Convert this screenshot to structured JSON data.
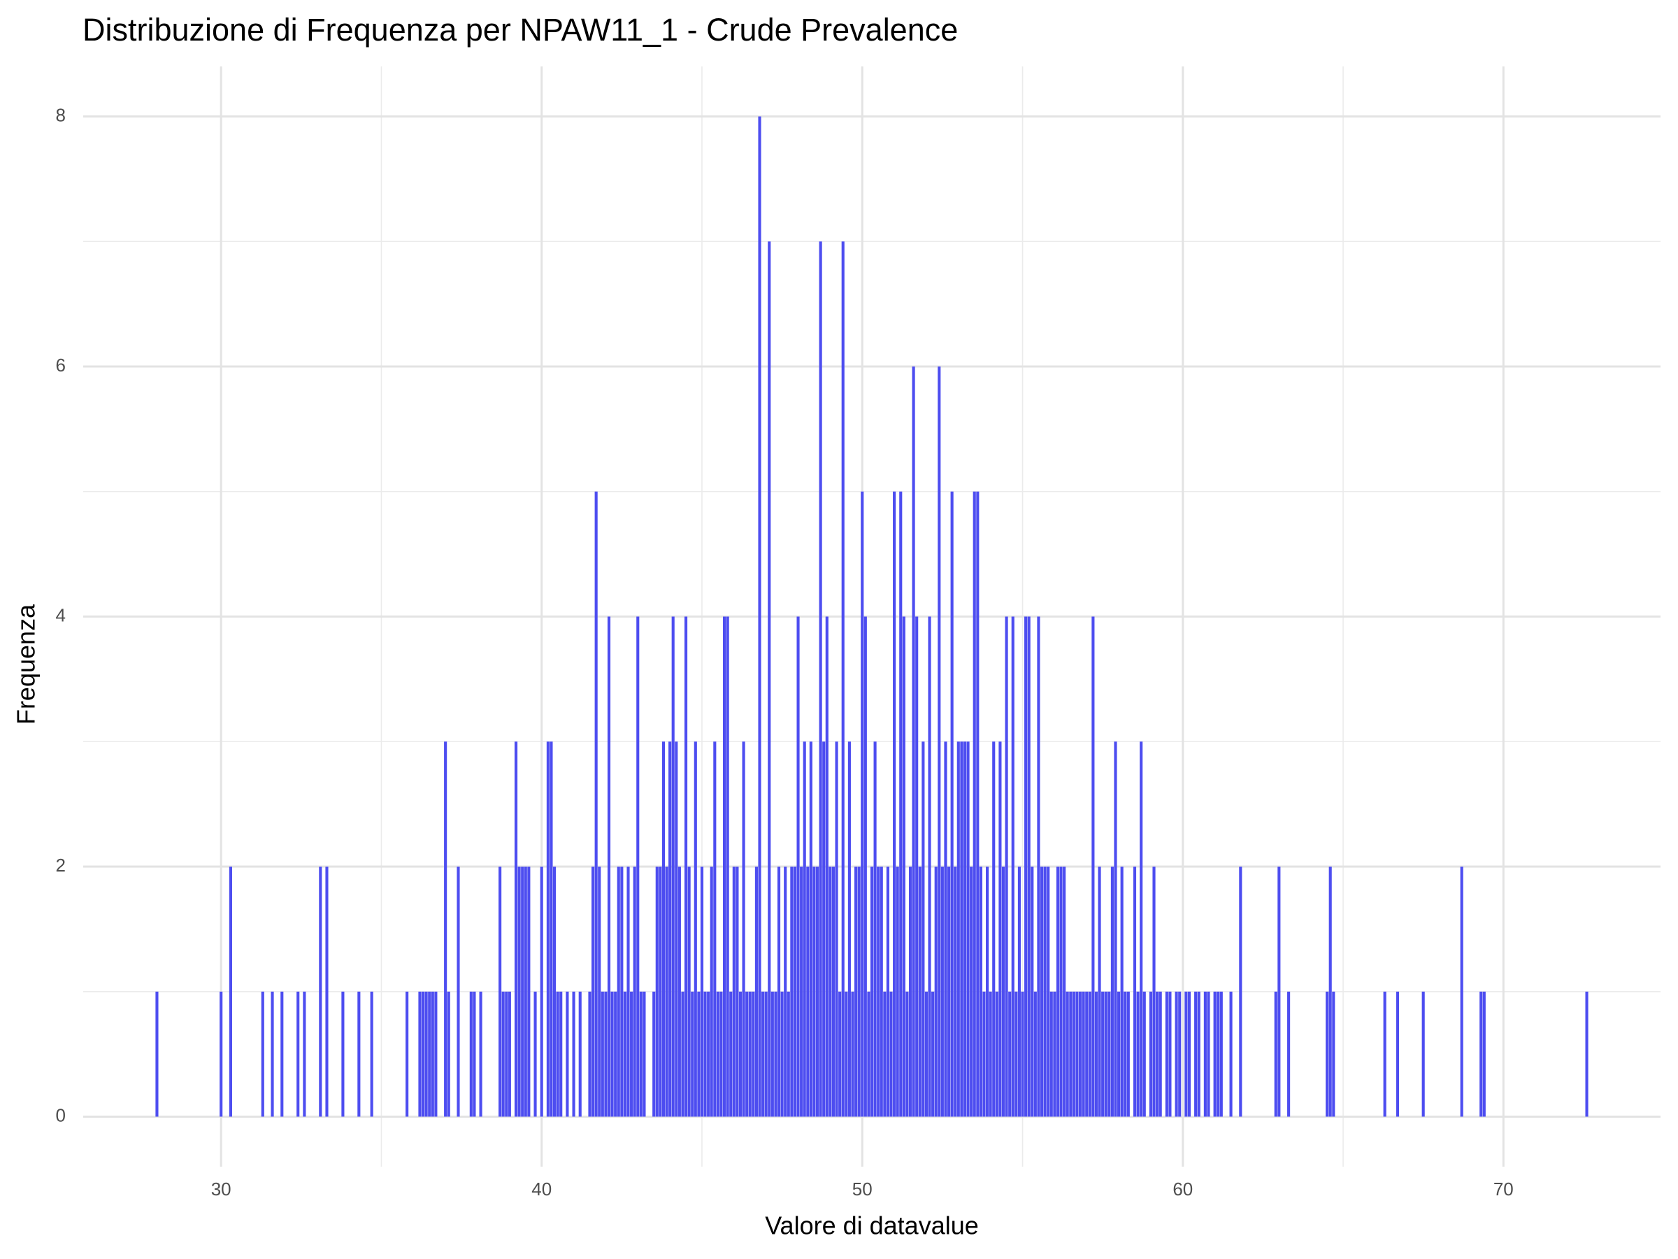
{
  "chart_data": {
    "type": "histogram",
    "title": "Distribuzione di Frequenza per NPAW11_1 - Crude Prevalence",
    "x_label": "Valore di datavalue",
    "y_label": "Frequenza",
    "color": "#4d4df0",
    "bin_width": 0.1,
    "x": [
      28.0,
      30.0,
      30.3,
      31.3,
      31.6,
      31.9,
      32.4,
      32.6,
      33.1,
      33.3,
      33.8,
      34.3,
      34.7,
      35.8,
      36.2,
      36.3,
      36.4,
      36.5,
      36.6,
      36.7,
      37.0,
      37.1,
      37.4,
      37.8,
      37.9,
      38.1,
      38.7,
      38.8,
      38.9,
      39.0,
      39.2,
      39.3,
      39.4,
      39.5,
      39.6,
      39.8,
      40.0,
      40.2,
      40.3,
      40.4,
      40.5,
      40.6,
      40.8,
      41.0,
      41.2,
      41.5,
      41.6,
      41.7,
      41.8,
      41.9,
      42.0,
      42.1,
      42.2,
      42.3,
      42.4,
      42.5,
      42.6,
      42.7,
      42.8,
      42.9,
      43.0,
      43.1,
      43.2,
      43.5,
      43.6,
      43.7,
      43.8,
      43.9,
      44.0,
      44.1,
      44.2,
      44.3,
      44.4,
      44.5,
      44.6,
      44.7,
      44.8,
      44.9,
      45.0,
      45.1,
      45.2,
      45.3,
      45.4,
      45.5,
      45.6,
      45.7,
      45.8,
      45.9,
      46.0,
      46.1,
      46.2,
      46.3,
      46.4,
      46.5,
      46.6,
      46.7,
      46.8,
      46.9,
      47.0,
      47.1,
      47.2,
      47.3,
      47.4,
      47.5,
      47.6,
      47.7,
      47.8,
      47.9,
      48.0,
      48.1,
      48.2,
      48.3,
      48.4,
      48.5,
      48.6,
      48.7,
      48.8,
      48.9,
      49.0,
      49.1,
      49.2,
      49.3,
      49.4,
      49.5,
      49.6,
      49.7,
      49.8,
      49.9,
      50.0,
      50.1,
      50.2,
      50.3,
      50.4,
      50.5,
      50.6,
      50.7,
      50.8,
      50.9,
      51.0,
      51.1,
      51.2,
      51.3,
      51.4,
      51.5,
      51.6,
      51.7,
      51.8,
      51.9,
      52.0,
      52.1,
      52.2,
      52.3,
      52.4,
      52.5,
      52.6,
      52.7,
      52.8,
      52.9,
      53.0,
      53.1,
      53.2,
      53.3,
      53.4,
      53.5,
      53.6,
      53.7,
      53.8,
      53.9,
      54.0,
      54.1,
      54.2,
      54.3,
      54.4,
      54.5,
      54.6,
      54.7,
      54.8,
      54.9,
      55.0,
      55.1,
      55.2,
      55.3,
      55.4,
      55.5,
      55.6,
      55.7,
      55.8,
      55.9,
      56.0,
      56.1,
      56.2,
      56.3,
      56.4,
      56.5,
      56.6,
      56.7,
      56.8,
      56.9,
      57.0,
      57.1,
      57.2,
      57.3,
      57.4,
      57.5,
      57.6,
      57.7,
      57.8,
      57.9,
      58.0,
      58.1,
      58.2,
      58.3,
      58.5,
      58.6,
      58.7,
      58.8,
      59.0,
      59.1,
      59.2,
      59.3,
      59.5,
      59.6,
      59.8,
      59.9,
      60.1,
      60.2,
      60.4,
      60.5,
      60.7,
      60.8,
      61.0,
      61.1,
      61.2,
      61.5,
      61.8,
      62.9,
      63.0,
      63.3,
      64.5,
      64.6,
      64.7,
      66.3,
      66.7,
      67.5,
      68.7,
      69.3,
      69.4,
      72.6
    ],
    "values": [
      1,
      1,
      2,
      1,
      1,
      1,
      1,
      1,
      2,
      2,
      1,
      1,
      1,
      1,
      1,
      1,
      1,
      1,
      1,
      1,
      3,
      1,
      2,
      1,
      1,
      1,
      2,
      1,
      1,
      1,
      3,
      2,
      2,
      2,
      2,
      1,
      2,
      3,
      3,
      2,
      1,
      1,
      1,
      1,
      1,
      1,
      2,
      5,
      2,
      1,
      1,
      4,
      1,
      1,
      2,
      2,
      1,
      2,
      1,
      2,
      4,
      1,
      1,
      1,
      2,
      2,
      3,
      2,
      3,
      4,
      3,
      2,
      1,
      4,
      2,
      1,
      3,
      1,
      2,
      1,
      1,
      2,
      3,
      1,
      1,
      4,
      4,
      1,
      2,
      2,
      1,
      3,
      1,
      1,
      1,
      2,
      8,
      1,
      1,
      7,
      1,
      1,
      2,
      1,
      2,
      1,
      2,
      2,
      4,
      2,
      3,
      2,
      3,
      2,
      2,
      7,
      3,
      4,
      2,
      2,
      3,
      1,
      7,
      1,
      3,
      1,
      2,
      2,
      5,
      4,
      1,
      2,
      3,
      2,
      2,
      1,
      2,
      1,
      5,
      2,
      5,
      4,
      1,
      2,
      6,
      4,
      2,
      3,
      1,
      4,
      1,
      2,
      6,
      2,
      3,
      2,
      5,
      2,
      3,
      3,
      3,
      3,
      2,
      5,
      5,
      2,
      1,
      2,
      1,
      3,
      1,
      3,
      2,
      4,
      1,
      4,
      1,
      2,
      1,
      4,
      4,
      2,
      1,
      4,
      2,
      2,
      2,
      1,
      1,
      2,
      2,
      2,
      1,
      1,
      1,
      1,
      1,
      1,
      1,
      1,
      4,
      1,
      2,
      1,
      1,
      1,
      2,
      3,
      1,
      2,
      1,
      1,
      2,
      1,
      3,
      1,
      1,
      2,
      1,
      1,
      1,
      1,
      1,
      1,
      1,
      1,
      1,
      1,
      1,
      1,
      1,
      1,
      1,
      1,
      2,
      1,
      2,
      1,
      1,
      2,
      1,
      1,
      1,
      1,
      2,
      1,
      1,
      1
    ],
    "xlim": [
      25.7,
      74.9
    ],
    "xticks": [
      30,
      40,
      50,
      60,
      70
    ],
    "x_minor_ticks": [
      35,
      45,
      55,
      65
    ],
    "ylim": [
      -0.4,
      8.4
    ],
    "yticks": [
      0,
      2,
      4,
      6,
      8
    ],
    "y_minor_ticks": [
      1,
      3,
      5,
      7
    ],
    "grid": true
  }
}
